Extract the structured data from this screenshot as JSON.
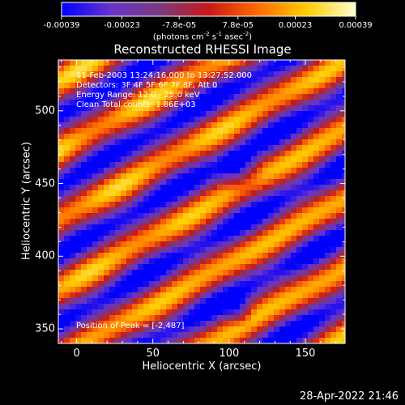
{
  "chart_data": {
    "type": "heatmap",
    "title": "Reconstructed RHESSI Image",
    "xlabel": "Heliocentric X (arcsec)",
    "ylabel": "Heliocentric Y (arcsec)",
    "xlim": [
      -12,
      176
    ],
    "ylim": [
      340,
      535
    ],
    "x_ticks": [
      "0",
      "50",
      "100",
      "150"
    ],
    "x_tick_values": [
      0,
      50,
      100,
      150
    ],
    "y_ticks": [
      "350",
      "400",
      "450",
      "500"
    ],
    "y_tick_values": [
      350,
      400,
      450,
      500
    ],
    "colorbar": {
      "min": -0.00039,
      "max": 0.00039,
      "tick_labels": [
        "-0.00039",
        "-0.00023",
        "-7.8e-05",
        "7.8e-05",
        "0.00023",
        "0.00039"
      ],
      "tick_values": [
        -0.00039,
        -0.00023,
        -7.8e-05,
        7.8e-05,
        0.00023,
        0.00039
      ],
      "unit_prefix": "(photons cm",
      "unit_sup1": "-2",
      "unit_mid1": " s",
      "unit_sup2": "-1",
      "unit_mid2": " asec",
      "unit_sup3": "-2",
      "unit_suffix": ")",
      "palette": [
        "#0000ff",
        "#6633cc",
        "#7a3a80",
        "#c81818",
        "#ff6a00",
        "#ffcc00",
        "#ffffcc"
      ]
    },
    "peak": [
      -2,
      487
    ],
    "peak_label": "Position of Peak = [-2,487]",
    "grid": false,
    "colorbar_position": "top"
  },
  "annotations": {
    "line1": "11-Feb-2003 13:24:16.000 to 13:27:52.000",
    "line2": "Detectors: 3F 4F 5F 6F 7F 8F, Att 0",
    "line3": "Energy Range: 12.0 - 25.0 keV",
    "line4": "Clean    Total counts: 1.86E+03"
  },
  "timestamp": "28-Apr-2022 21:46"
}
